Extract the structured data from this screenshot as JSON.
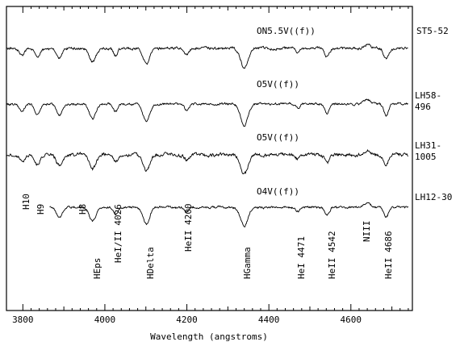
{
  "chart_data": {
    "type": "line",
    "xlabel": "Wavelength (angstroms)",
    "xlim": [
      3760,
      4750
    ],
    "x_ticks": [
      3800,
      4000,
      4200,
      4400,
      4600
    ],
    "grid": false,
    "series": [
      {
        "name": "ST5-52",
        "spectral_type": "ON5.5V((f))",
        "start": 3760,
        "noise": 0.55,
        "depth_scale": 1.0,
        "star_label": "ST5-52"
      },
      {
        "name": "LH58-496",
        "spectral_type": "O5V((f))",
        "start": 3760,
        "noise": 0.45,
        "depth_scale": 1.1,
        "star_label": [
          "LH58-",
          "496"
        ]
      },
      {
        "name": "LH31-1005",
        "spectral_type": "O5V((f))",
        "start": 3760,
        "noise": 0.7,
        "depth_scale": 1.0,
        "star_label": [
          "LH31-",
          "1005"
        ]
      },
      {
        "name": "LH12-30",
        "spectral_type": "O4V((f))",
        "start": 3865,
        "noise": 0.45,
        "depth_scale": 1.0,
        "star_label": "LH12-30"
      }
    ],
    "absorption_lines": [
      {
        "label": "H10",
        "wavelength": 3798,
        "depth": 9,
        "width": 3.0
      },
      {
        "label": "H9",
        "wavelength": 3835,
        "depth": 11,
        "width": 3.2
      },
      {
        "label": "H8",
        "wavelength": 3889,
        "depth": 13,
        "width": 3.5
      },
      {
        "label": "HEps",
        "wavelength": 3970,
        "depth": 17,
        "width": 4.0
      },
      {
        "label": "HeI/II 4026",
        "wavelength": 4026,
        "depth": 9,
        "width": 2.6
      },
      {
        "label": "HDelta",
        "wavelength": 4101,
        "depth": 20,
        "width": 4.2
      },
      {
        "label": "HeII 4200",
        "wavelength": 4200,
        "depth": 7,
        "width": 2.6
      },
      {
        "label": "HGamma",
        "wavelength": 4340,
        "depth": 24,
        "width": 4.5
      },
      {
        "label": "HeI 4471",
        "wavelength": 4471,
        "depth": 5,
        "width": 2.4
      },
      {
        "label": "HeII 4542",
        "wavelength": 4542,
        "depth": 10,
        "width": 2.8
      },
      {
        "label": "NIII",
        "wavelength": 4640,
        "depth": -5,
        "width": 4.0
      },
      {
        "label": "HeII 4686",
        "wavelength": 4686,
        "depth": 13,
        "width": 2.8
      }
    ]
  }
}
